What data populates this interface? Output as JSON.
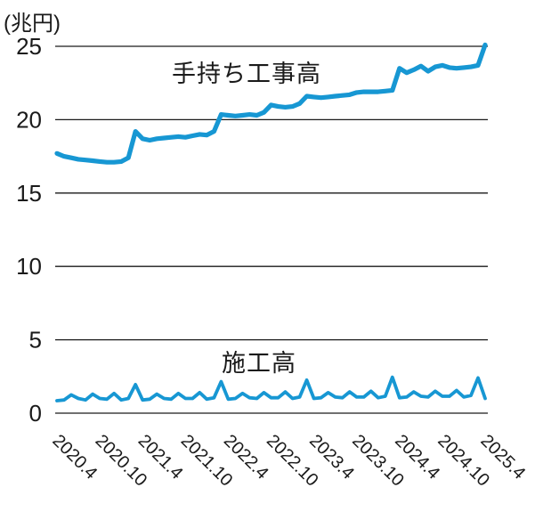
{
  "chart": {
    "unit_label": "(兆円)",
    "line_color": "#1797d3",
    "text_color": "#1a1a1a",
    "grid_color": "#1a1a1a"
  },
  "chart_data": {
    "type": "line",
    "title": "",
    "ylabel": "(兆円)",
    "ylim": [
      0,
      25
    ],
    "yticks": [
      0,
      5,
      10,
      15,
      20,
      25
    ],
    "grid": true,
    "legend": "inline-labels",
    "x_tick_labels": [
      "2020.4",
      "2020.10",
      "2021.4",
      "2021.10",
      "2022.4",
      "2022.10",
      "2023.4",
      "2023.10",
      "2024.4",
      "2024.10",
      "2025.4"
    ],
    "x": [
      "2020.4",
      "2020.5",
      "2020.6",
      "2020.7",
      "2020.8",
      "2020.9",
      "2020.10",
      "2020.11",
      "2020.12",
      "2021.1",
      "2021.2",
      "2021.3",
      "2021.4",
      "2021.5",
      "2021.6",
      "2021.7",
      "2021.8",
      "2021.9",
      "2021.10",
      "2021.11",
      "2021.12",
      "2022.1",
      "2022.2",
      "2022.3",
      "2022.4",
      "2022.5",
      "2022.6",
      "2022.7",
      "2022.8",
      "2022.9",
      "2022.10",
      "2022.11",
      "2022.12",
      "2023.1",
      "2023.2",
      "2023.3",
      "2023.4",
      "2023.5",
      "2023.6",
      "2023.7",
      "2023.8",
      "2023.9",
      "2023.10",
      "2023.11",
      "2023.12",
      "2024.1",
      "2024.2",
      "2024.3",
      "2024.4",
      "2024.5",
      "2024.6",
      "2024.7",
      "2024.8",
      "2024.9",
      "2024.10",
      "2024.11",
      "2024.12",
      "2025.1",
      "2025.2",
      "2025.3",
      "2025.4"
    ],
    "series": [
      {
        "name": "手持ち工事高",
        "values": [
          17.7,
          17.5,
          17.4,
          17.3,
          17.25,
          17.2,
          17.15,
          17.1,
          17.1,
          17.15,
          17.4,
          19.2,
          18.7,
          18.6,
          18.7,
          18.75,
          18.8,
          18.85,
          18.8,
          18.9,
          19.0,
          18.95,
          19.2,
          20.35,
          20.3,
          20.25,
          20.3,
          20.35,
          20.3,
          20.5,
          21.0,
          20.9,
          20.85,
          20.9,
          21.1,
          21.6,
          21.55,
          21.5,
          21.55,
          21.6,
          21.65,
          21.7,
          21.85,
          21.9,
          21.9,
          21.9,
          21.95,
          22.0,
          23.5,
          23.2,
          23.4,
          23.65,
          23.3,
          23.6,
          23.7,
          23.55,
          23.5,
          23.55,
          23.6,
          23.7,
          25.1
        ]
      },
      {
        "name": "施工高",
        "values": [
          0.85,
          0.9,
          1.25,
          1.0,
          0.9,
          1.3,
          1.0,
          0.95,
          1.35,
          0.9,
          1.0,
          1.95,
          0.9,
          0.95,
          1.3,
          1.0,
          0.95,
          1.35,
          1.0,
          1.0,
          1.4,
          0.95,
          1.05,
          2.15,
          0.95,
          1.0,
          1.35,
          1.05,
          1.0,
          1.4,
          1.05,
          1.05,
          1.45,
          1.0,
          1.1,
          2.25,
          1.0,
          1.05,
          1.4,
          1.1,
          1.05,
          1.45,
          1.1,
          1.1,
          1.5,
          1.05,
          1.15,
          2.45,
          1.05,
          1.1,
          1.45,
          1.15,
          1.1,
          1.5,
          1.15,
          1.15,
          1.55,
          1.1,
          1.2,
          2.4,
          1.0
        ]
      }
    ]
  }
}
